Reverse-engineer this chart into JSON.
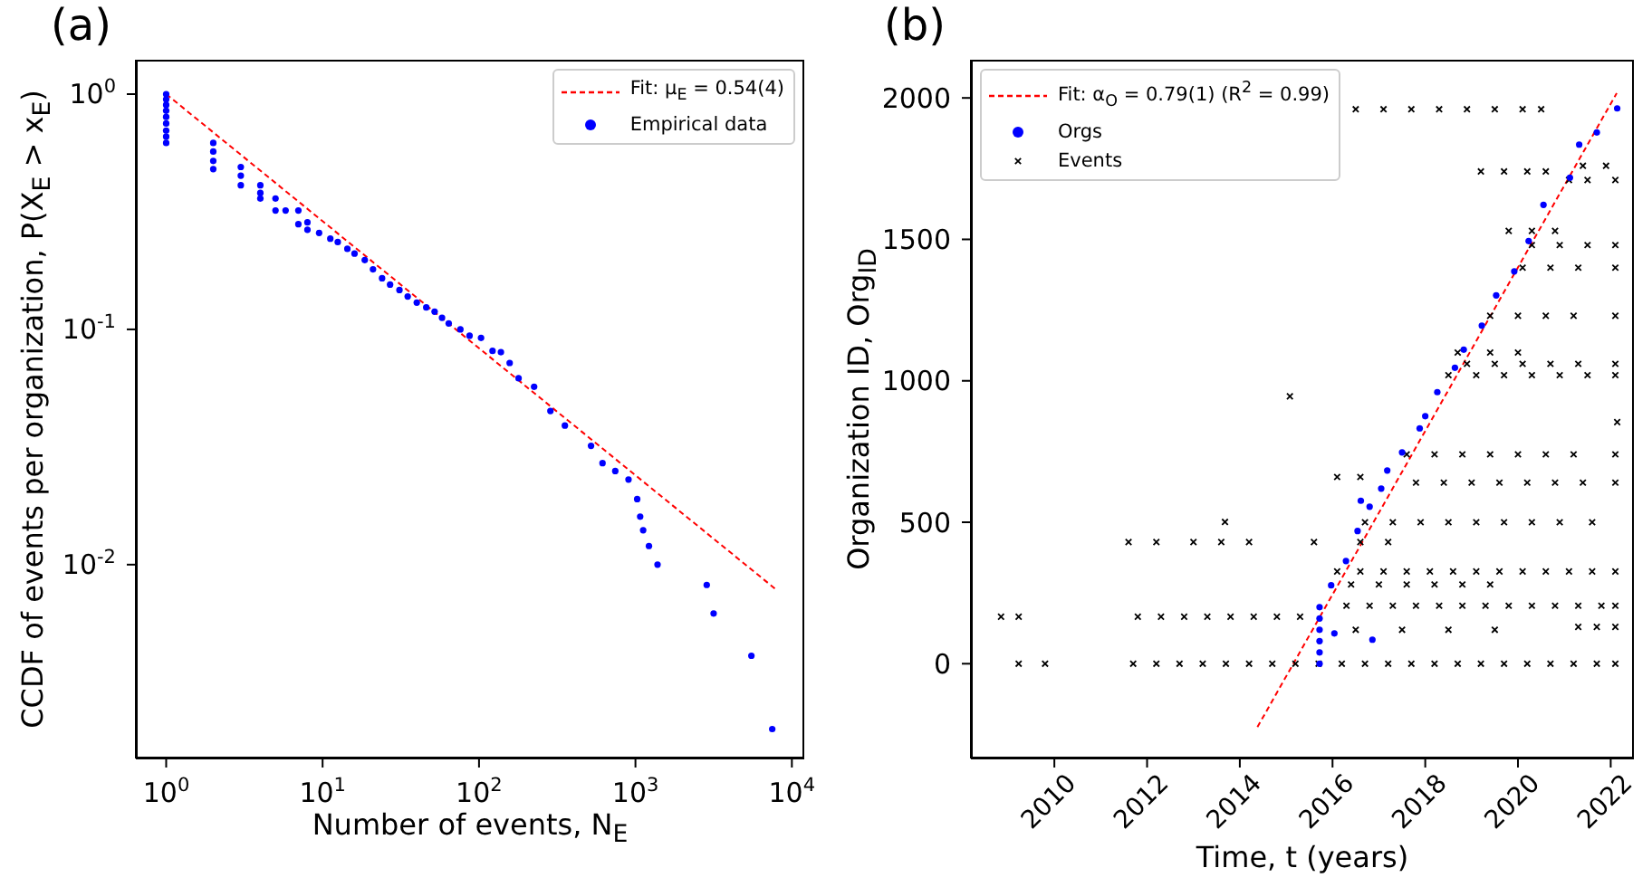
{
  "chart_data": [
    {
      "type": "scatter",
      "title": "(a)",
      "xlabel": "Number of events, N$_{E}$",
      "ylabel": "CCDF of events per organization, P(X$_{E}$ > x$_{E}$)",
      "log": "xy",
      "xlim": [
        0.64,
        12000
      ],
      "ylim": [
        0.0015,
        1.4
      ],
      "xticks": [
        {
          "value": 1,
          "label": "10$^{0}$"
        },
        {
          "value": 10,
          "label": "10$^{1}$"
        },
        {
          "value": 100,
          "label": "10$^{2}$"
        },
        {
          "value": 1000,
          "label": "10$^{3}$"
        },
        {
          "value": 10000,
          "label": "10$^{4}$"
        }
      ],
      "yticks": [
        {
          "value": 0.01,
          "label": "10$^{-2}$"
        },
        {
          "value": 0.1,
          "label": "10$^{-1}$"
        },
        {
          "value": 1,
          "label": "10$^{0}$"
        }
      ],
      "legend": "top right",
      "series": [
        {
          "name": "Fit: μ$_{E}$ = 0.54(4)",
          "type": "line",
          "color": "#ff0000",
          "line_style": "dashed",
          "marker": "none",
          "x": [
            1,
            8000
          ],
          "values": [
            1,
            0.0078
          ]
        },
        {
          "name": "Empirical data",
          "type": "scatter",
          "color": "#0000ff",
          "marker": "circle",
          "x": [
            1,
            1,
            1,
            1,
            1,
            1,
            1,
            1,
            1,
            2,
            2,
            2,
            2,
            3,
            3,
            3,
            4,
            4,
            4,
            5,
            5,
            5.8,
            7,
            7,
            8,
            8,
            9.5,
            11.2,
            12.5,
            14.4,
            16,
            18.6,
            21,
            24,
            27,
            31,
            35,
            40,
            46,
            52,
            58,
            64,
            76,
            87,
            103,
            122,
            138,
            157,
            179,
            225,
            286,
            354,
            520,
            616,
            743,
            903,
            1026,
            1072,
            1120,
            1220,
            1384,
            2856,
            3160,
            5510,
            7490
          ],
          "values": [
            1,
            0.95,
            0.9,
            0.85,
            0.8,
            0.75,
            0.7,
            0.66,
            0.62,
            0.62,
            0.57,
            0.52,
            0.48,
            0.49,
            0.45,
            0.41,
            0.41,
            0.38,
            0.36,
            0.36,
            0.32,
            0.32,
            0.32,
            0.28,
            0.285,
            0.265,
            0.257,
            0.243,
            0.235,
            0.22,
            0.21,
            0.197,
            0.18,
            0.165,
            0.155,
            0.147,
            0.138,
            0.13,
            0.124,
            0.119,
            0.112,
            0.106,
            0.1,
            0.094,
            0.092,
            0.081,
            0.08,
            0.072,
            0.062,
            0.057,
            0.045,
            0.039,
            0.032,
            0.027,
            0.025,
            0.023,
            0.019,
            0.016,
            0.014,
            0.012,
            0.01,
            0.0082,
            0.0062,
            0.0041,
            0.002
          ]
        }
      ]
    },
    {
      "type": "scatter",
      "title": "(b)",
      "xlabel": "Time, t (years)",
      "ylabel": "Organization ID, Org$_{ID}$",
      "xlim": [
        2008.2,
        2022.5
      ],
      "ylim": [
        -335,
        2135
      ],
      "xticks": [
        2010,
        2012,
        2014,
        2016,
        2018,
        2020,
        2022
      ],
      "yticks": [
        0,
        500,
        1000,
        1500,
        2000
      ],
      "legend": "top left",
      "series": [
        {
          "name": "Fit: α$_{O}$ = 0.79(1) (R$^{2}$ = 0.99)",
          "type": "line",
          "color": "#ff0000",
          "line_style": "dashed",
          "marker": "none",
          "x": [
            2014.38,
            2022.13
          ],
          "values": [
            -224,
            2017
          ]
        },
        {
          "name": "Orgs",
          "type": "scatter",
          "color": "#0000ff",
          "marker": "circle",
          "x": [
            2015.72,
            2015.72,
            2015.72,
            2015.72,
            2015.72,
            2015.72,
            2015.97,
            2016.29,
            2016.54,
            2016.8,
            2017.05,
            2017.18,
            2017.5,
            2017.88,
            2018.0,
            2018.26,
            2018.64,
            2018.83,
            2019.22,
            2019.53,
            2019.92,
            2020.23,
            2020.55,
            2021.12,
            2021.32,
            2021.7,
            2022.14,
            2016.04,
            2016.86,
            2016.61
          ],
          "values": [
            0,
            40,
            80,
            120,
            160,
            200,
            277,
            363,
            469,
            555,
            619,
            683,
            747,
            832,
            875,
            960,
            1046,
            1110,
            1195,
            1302,
            1387,
            1494,
            1622,
            1718,
            1835,
            1878,
            1963,
            107,
            85,
            576
          ]
        },
        {
          "name": "Events",
          "type": "scatter",
          "color": "#000000",
          "marker": "cross",
          "x": [
            2009.23,
            2009.8,
            2011.7,
            2012.2,
            2012.7,
            2013.2,
            2013.7,
            2014.2,
            2014.7,
            2015.2,
            2015.7,
            2016.2,
            2016.7,
            2017.2,
            2017.7,
            2018.2,
            2018.7,
            2019.2,
            2019.7,
            2020.2,
            2020.7,
            2021.2,
            2021.7,
            2022.1,
            2008.85,
            2009.23,
            2011.8,
            2012.3,
            2012.8,
            2013.3,
            2013.8,
            2014.3,
            2014.8,
            2015.3,
            2016.3,
            2016.8,
            2017.3,
            2017.8,
            2018.3,
            2018.8,
            2019.3,
            2019.8,
            2020.3,
            2020.8,
            2021.3,
            2021.8,
            2022.1,
            2021.3,
            2021.7,
            2022.1,
            2016.5,
            2017.5,
            2018.5,
            2019.5,
            2016.1,
            2016.6,
            2017.1,
            2017.6,
            2018.1,
            2018.6,
            2019.1,
            2019.6,
            2020.1,
            2020.6,
            2021.1,
            2021.6,
            2022.1,
            2016.4,
            2017.0,
            2017.6,
            2018.2,
            2018.8,
            2019.4,
            2011.6,
            2012.2,
            2013.0,
            2013.6,
            2014.2,
            2015.6,
            2016.6,
            2017.2,
            2016.7,
            2017.3,
            2017.9,
            2018.5,
            2019.1,
            2019.7,
            2020.3,
            2020.9,
            2021.6,
            2017.8,
            2018.4,
            2019.0,
            2019.6,
            2020.2,
            2020.8,
            2021.4,
            2022.1,
            2017.6,
            2018.2,
            2018.8,
            2019.4,
            2020.0,
            2020.6,
            2021.2,
            2022.1,
            2016.1,
            2016.6,
            2018.5,
            2019.1,
            2019.7,
            2020.3,
            2020.9,
            2021.5,
            2022.1,
            2018.9,
            2019.5,
            2020.1,
            2020.7,
            2021.3,
            2022.1,
            2018.7,
            2019.4,
            2020.0,
            2019.4,
            2020.0,
            2020.6,
            2021.2,
            2022.1,
            2020.1,
            2020.7,
            2021.3,
            2022.1,
            2020.3,
            2020.9,
            2021.5,
            2022.1,
            2021.1,
            2021.5,
            2022.1,
            2021.4,
            2021.9,
            2019.2,
            2019.7,
            2020.2,
            2020.6,
            2016.5,
            2017.1,
            2017.7,
            2018.3,
            2018.9,
            2019.5,
            2020.1,
            2020.5,
            2019.8,
            2020.3,
            2020.8,
            2015.08,
            2013.68,
            2022.14
          ],
          "values": [
            0,
            0,
            0,
            0,
            0,
            0,
            0,
            0,
            0,
            0,
            0,
            0,
            0,
            0,
            0,
            0,
            0,
            0,
            0,
            0,
            0,
            0,
            0,
            0,
            166,
            166,
            166,
            166,
            166,
            166,
            166,
            166,
            166,
            166,
            205,
            205,
            205,
            205,
            205,
            205,
            205,
            205,
            205,
            205,
            205,
            205,
            205,
            130,
            130,
            130,
            120,
            120,
            120,
            120,
            326,
            326,
            326,
            326,
            326,
            326,
            326,
            326,
            326,
            326,
            326,
            326,
            326,
            280,
            280,
            280,
            280,
            280,
            280,
            430,
            430,
            430,
            430,
            430,
            430,
            430,
            430,
            500,
            500,
            500,
            500,
            500,
            500,
            500,
            500,
            500,
            640,
            640,
            640,
            640,
            640,
            640,
            640,
            640,
            740,
            740,
            740,
            740,
            740,
            740,
            740,
            740,
            660,
            660,
            1020,
            1020,
            1020,
            1020,
            1020,
            1020,
            1020,
            1060,
            1060,
            1060,
            1060,
            1060,
            1060,
            1100,
            1100,
            1100,
            1230,
            1230,
            1230,
            1230,
            1230,
            1400,
            1400,
            1400,
            1400,
            1480,
            1480,
            1480,
            1480,
            1710,
            1710,
            1710,
            1760,
            1760,
            1740,
            1740,
            1740,
            1740,
            1960,
            1960,
            1960,
            1960,
            1960,
            1960,
            1960,
            1960,
            1530,
            1530,
            1530,
            945,
            501,
            854
          ]
        }
      ]
    }
  ]
}
